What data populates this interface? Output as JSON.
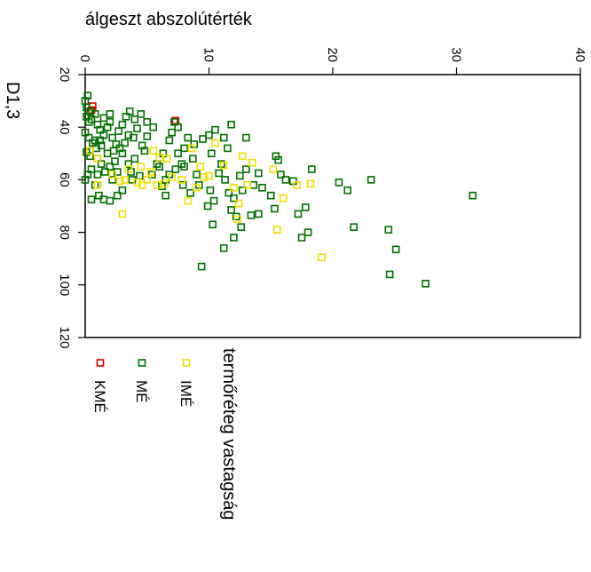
{
  "chart_data": {
    "type": "scatter",
    "title": "",
    "xlabel": "álgeszt abszolútérték",
    "ylabel": "D1,3",
    "xlim": [
      0,
      40
    ],
    "ylim": [
      20,
      120
    ],
    "x_ticks": [
      "0",
      "10",
      "20",
      "30",
      "40"
    ],
    "y_ticks": [
      "20",
      "40",
      "60",
      "80",
      "100",
      "120"
    ],
    "grid": false,
    "legend": {
      "title": "termőréteg vastagság",
      "placement": "bottom"
    },
    "series": [
      {
        "name": "KMÉ",
        "color": "#dd0000",
        "points": [
          [
            0.6,
            32.0
          ],
          [
            0.5,
            33.5
          ],
          [
            7.3,
            37.5
          ]
        ]
      },
      {
        "name": "MÉ",
        "color": "#007000",
        "points": [
          [
            0.0,
            30.0
          ],
          [
            0.2,
            28.0
          ],
          [
            0.1,
            32.5
          ],
          [
            0.4,
            34.0
          ],
          [
            0.1,
            36.0
          ],
          [
            0.3,
            38.0
          ],
          [
            0.5,
            37.0
          ],
          [
            0.8,
            35.0
          ],
          [
            1.0,
            39.0
          ],
          [
            1.2,
            41.0
          ],
          [
            0.0,
            42.0
          ],
          [
            0.3,
            44.0
          ],
          [
            0.6,
            46.0
          ],
          [
            0.9,
            48.0
          ],
          [
            0.1,
            49.5
          ],
          [
            0.4,
            51.0
          ],
          [
            1.2,
            45.0
          ],
          [
            1.5,
            43.0
          ],
          [
            1.8,
            40.0
          ],
          [
            2.0,
            38.0
          ],
          [
            2.2,
            44.0
          ],
          [
            2.5,
            46.5
          ],
          [
            2.8,
            48.0
          ],
          [
            1.0,
            52.0
          ],
          [
            1.3,
            54.0
          ],
          [
            0.5,
            56.0
          ],
          [
            0.2,
            58.0
          ],
          [
            0.0,
            60.0
          ],
          [
            1.6,
            57.0
          ],
          [
            2.0,
            55.0
          ],
          [
            2.4,
            53.0
          ],
          [
            3.0,
            50.0
          ],
          [
            3.2,
            46.0
          ],
          [
            3.5,
            43.0
          ],
          [
            3.0,
            39.0
          ],
          [
            3.3,
            36.0
          ],
          [
            3.6,
            34.0
          ],
          [
            4.0,
            37.0
          ],
          [
            4.2,
            40.5
          ],
          [
            4.5,
            35.0
          ],
          [
            2.7,
            41.5
          ],
          [
            2.0,
            35.0
          ],
          [
            1.5,
            36.5
          ],
          [
            1.8,
            50.0
          ],
          [
            2.2,
            60.0
          ],
          [
            1.0,
            58.0
          ],
          [
            0.8,
            62.0
          ],
          [
            1.1,
            66.0
          ],
          [
            0.5,
            67.5
          ],
          [
            1.5,
            67.5
          ],
          [
            3.0,
            64.0
          ],
          [
            2.6,
            66.0
          ],
          [
            2.0,
            68.0
          ],
          [
            3.7,
            57.0
          ],
          [
            4.0,
            52.0
          ],
          [
            4.6,
            47.0
          ],
          [
            5.0,
            43.5
          ],
          [
            5.5,
            40.0
          ],
          [
            5.0,
            38.0
          ],
          [
            5.4,
            58.0
          ],
          [
            6.0,
            55.0
          ],
          [
            6.3,
            50.0
          ],
          [
            6.8,
            45.0
          ],
          [
            7.0,
            42.0
          ],
          [
            7.2,
            38.0
          ],
          [
            7.5,
            40.0
          ],
          [
            6.5,
            60.0
          ],
          [
            6.2,
            62.5
          ],
          [
            6.8,
            58.0
          ],
          [
            7.3,
            56.0
          ],
          [
            7.8,
            54.0
          ],
          [
            7.5,
            50.0
          ],
          [
            8.0,
            48.0
          ],
          [
            8.3,
            44.0
          ],
          [
            8.8,
            46.5
          ],
          [
            9.0,
            58.0
          ],
          [
            9.2,
            62.0
          ],
          [
            8.5,
            65.0
          ],
          [
            7.9,
            62.0
          ],
          [
            8.7,
            52.0
          ],
          [
            10.0,
            43.0
          ],
          [
            10.5,
            41.0
          ],
          [
            10.2,
            50.0
          ],
          [
            10.8,
            57.5
          ],
          [
            10.1,
            64.0
          ],
          [
            10.4,
            68.0
          ],
          [
            9.9,
            70.0
          ],
          [
            10.3,
            77.0
          ],
          [
            11.2,
            44.0
          ],
          [
            11.8,
            39.0
          ],
          [
            11.5,
            48.0
          ],
          [
            11.0,
            54.0
          ],
          [
            11.3,
            60.0
          ],
          [
            11.6,
            65.0
          ],
          [
            11.8,
            71.5
          ],
          [
            12.0,
            67.0
          ],
          [
            12.5,
            58.5
          ],
          [
            12.7,
            64.0
          ],
          [
            12.2,
            74.0
          ],
          [
            12.6,
            78.0
          ],
          [
            11.2,
            86.0
          ],
          [
            9.4,
            93.0
          ],
          [
            12.0,
            82.0
          ],
          [
            13.0,
            44.0
          ],
          [
            13.6,
            62.0
          ],
          [
            13.4,
            73.5
          ],
          [
            13.0,
            56.0
          ],
          [
            14.0,
            57.5
          ],
          [
            14.3,
            63.0
          ],
          [
            14.0,
            73.0
          ],
          [
            15.0,
            66.0
          ],
          [
            15.3,
            71.0
          ],
          [
            15.4,
            51.0
          ],
          [
            15.6,
            52.5
          ],
          [
            15.8,
            58.0
          ],
          [
            16.2,
            60.0
          ],
          [
            16.8,
            60.5
          ],
          [
            17.2,
            73.0
          ],
          [
            17.5,
            82.0
          ],
          [
            17.8,
            70.5
          ],
          [
            18.0,
            80.0
          ],
          [
            18.3,
            56.0
          ],
          [
            20.5,
            61.0
          ],
          [
            21.2,
            64.0
          ],
          [
            21.7,
            78.0
          ],
          [
            23.1,
            60.0
          ],
          [
            24.5,
            79.0
          ],
          [
            25.1,
            86.5
          ],
          [
            24.6,
            96.0
          ],
          [
            27.5,
            99.5
          ],
          [
            31.3,
            66.0
          ],
          [
            3.8,
            60.0
          ],
          [
            4.4,
            58.5
          ],
          [
            5.8,
            54.0
          ],
          [
            6.5,
            66.0
          ],
          [
            9.5,
            44.5
          ],
          [
            8.0,
            55.0
          ],
          [
            4.8,
            49.0
          ],
          [
            3.5,
            54.0
          ],
          [
            1.3,
            47.0
          ],
          [
            0.8,
            45.0
          ],
          [
            2.3,
            49.0
          ],
          [
            2.6,
            57.0
          ],
          [
            3.9,
            44.0
          ]
        ]
      },
      {
        "name": "IMÉ",
        "color": "#f0e000",
        "points": [
          [
            0.4,
            49.0
          ],
          [
            1.0,
            52.0
          ],
          [
            2.2,
            58.0
          ],
          [
            2.8,
            60.5
          ],
          [
            3.5,
            56.0
          ],
          [
            4.2,
            61.0
          ],
          [
            4.6,
            62.0
          ],
          [
            5.0,
            60.0
          ],
          [
            5.3,
            57.0
          ],
          [
            5.8,
            62.0
          ],
          [
            6.4,
            61.5
          ],
          [
            7.0,
            59.0
          ],
          [
            7.8,
            60.0
          ],
          [
            6.6,
            52.0
          ],
          [
            5.5,
            49.0
          ],
          [
            4.5,
            55.0
          ],
          [
            3.0,
            73.0
          ],
          [
            8.3,
            68.0
          ],
          [
            9.0,
            63.0
          ],
          [
            9.6,
            59.0
          ],
          [
            9.3,
            55.0
          ],
          [
            8.6,
            48.0
          ],
          [
            10.5,
            46.0
          ],
          [
            11.2,
            54.5
          ],
          [
            12.0,
            63.0
          ],
          [
            12.4,
            69.0
          ],
          [
            12.3,
            75.0
          ],
          [
            12.7,
            51.0
          ],
          [
            13.1,
            62.0
          ],
          [
            13.5,
            53.5
          ],
          [
            15.2,
            56.0
          ],
          [
            15.5,
            79.0
          ],
          [
            16.0,
            67.0
          ],
          [
            17.1,
            62.0
          ],
          [
            18.2,
            61.5
          ],
          [
            19.1,
            89.5
          ],
          [
            1.0,
            62.0
          ],
          [
            6.0,
            51.5
          ],
          [
            10.0,
            58.5
          ],
          [
            3.2,
            60.0
          ]
        ]
      }
    ]
  }
}
